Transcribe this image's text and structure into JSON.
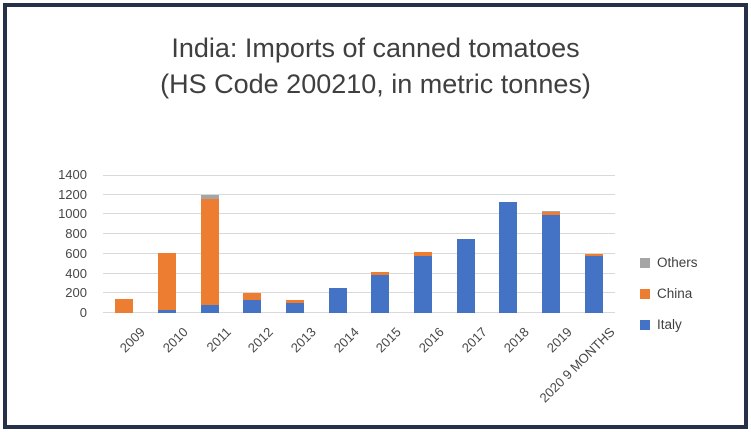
{
  "window": {
    "background": "#ffffff"
  },
  "colors": {
    "frame_border": "#273049",
    "gridline": "#d9d9d9",
    "axis_text": "#474747",
    "title_text": "#3f3f3f",
    "legend_text": "#404040"
  },
  "title": {
    "line1": "India: Imports of canned tomatoes",
    "line2": "(HS Code 200210, in metric tonnes)"
  },
  "chart_data": {
    "type": "bar",
    "stacked": true,
    "title": "India: Imports of canned tomatoes (HS Code 200210, in metric tonnes)",
    "xlabel": "",
    "ylabel": "",
    "categories": [
      "2009",
      "2010",
      "2011",
      "2012",
      "2013",
      "2014",
      "2015",
      "2016",
      "2017",
      "2018",
      "2019",
      "2020 9 MONTHS"
    ],
    "series": [
      {
        "name": "Italy",
        "color": "#4472C4",
        "values": [
          0,
          35,
          80,
          135,
          105,
          250,
          390,
          575,
          750,
          1130,
          990,
          580
        ]
      },
      {
        "name": "China",
        "color": "#ED7D31",
        "values": [
          145,
          575,
          1080,
          70,
          25,
          0,
          30,
          45,
          0,
          0,
          40,
          15
        ]
      },
      {
        "name": "Others",
        "color": "#A5A5A5",
        "values": [
          0,
          0,
          40,
          0,
          0,
          0,
          0,
          0,
          0,
          0,
          10,
          0
        ]
      }
    ],
    "totals": [
      145,
      610,
      1200,
      205,
      130,
      250,
      420,
      620,
      750,
      1130,
      1040,
      595
    ],
    "y_ticks": [
      0,
      200,
      400,
      600,
      800,
      1000,
      1200,
      1400
    ],
    "ylim": [
      0,
      1400
    ],
    "grid": true,
    "legend_position": "right",
    "legend_order": [
      "Others",
      "China",
      "Italy"
    ]
  }
}
